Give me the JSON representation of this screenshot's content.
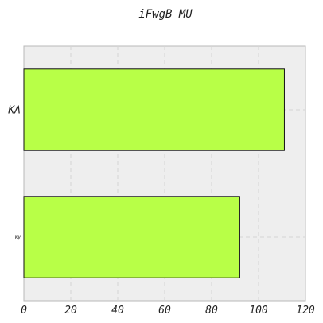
{
  "chart_data": {
    "type": "bar",
    "orientation": "horizontal",
    "title": "iFwgB MU",
    "xlabel": "",
    "ylabel": "",
    "categories": [
      "KA",
      "ky"
    ],
    "values": [
      111,
      92
    ],
    "xlim": [
      0,
      120
    ],
    "xticks": [
      "0",
      "20",
      "40",
      "60",
      "80",
      "100",
      "120"
    ],
    "grid": true,
    "legend": "none",
    "bar_color": "#b8ff47",
    "background_color": "#eeeeee"
  }
}
